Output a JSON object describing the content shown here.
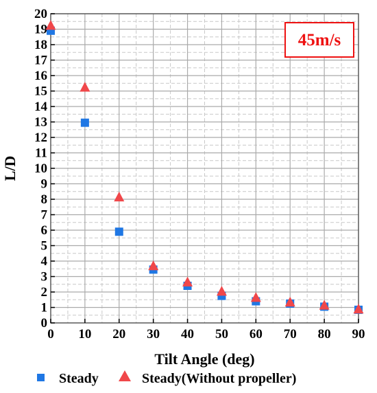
{
  "chart_data": {
    "type": "scatter",
    "title": "",
    "xlabel": "Tilt Angle (deg)",
    "ylabel": "L/D",
    "xlim": [
      0,
      90
    ],
    "ylim": [
      0,
      20
    ],
    "xticks": [
      0,
      10,
      20,
      30,
      40,
      50,
      60,
      70,
      80,
      90
    ],
    "yticks": [
      0,
      1,
      2,
      3,
      4,
      5,
      6,
      7,
      8,
      9,
      10,
      11,
      12,
      13,
      14,
      15,
      16,
      17,
      18,
      19,
      20
    ],
    "grid": true,
    "legend_position": "bottom",
    "annotation": {
      "text": "45m/s",
      "position": "top-right",
      "color": "#ee1111",
      "border": "#ee1111"
    },
    "series": [
      {
        "name": "Steady",
        "marker": "square",
        "color": "#1f77e4",
        "x": [
          0,
          10,
          20,
          30,
          40,
          50,
          60,
          70,
          80,
          90
        ],
        "y": [
          18.9,
          12.95,
          5.9,
          3.45,
          2.4,
          1.75,
          1.4,
          1.25,
          1.05,
          0.85
        ]
      },
      {
        "name": "Steady(Without propeller)",
        "marker": "triangle",
        "color": "#f0474a",
        "x": [
          0,
          10,
          20,
          30,
          40,
          50,
          60,
          70,
          80,
          90
        ],
        "y": [
          19.2,
          15.2,
          8.1,
          3.65,
          2.6,
          2.0,
          1.6,
          1.3,
          1.1,
          0.85
        ]
      }
    ]
  }
}
